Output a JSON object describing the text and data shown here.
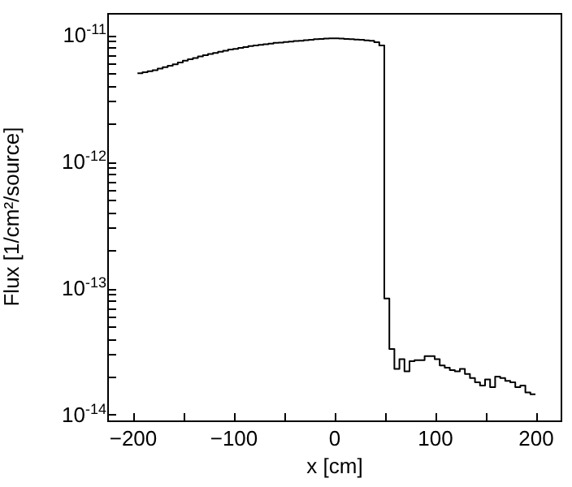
{
  "chart_data": {
    "type": "histogram",
    "xlabel": "x [cm]",
    "ylabel": "Flux [1/cm²/source]",
    "bins": [
      -195,
      -190,
      -185,
      -180,
      -175,
      -170,
      -165,
      -160,
      -155,
      -150,
      -145,
      -140,
      -135,
      -130,
      -125,
      -120,
      -115,
      -110,
      -105,
      -100,
      -95,
      -90,
      -85,
      -80,
      -75,
      -70,
      -65,
      -60,
      -55,
      -50,
      -45,
      -40,
      -35,
      -30,
      -25,
      -20,
      -15,
      -10,
      -5,
      0,
      5,
      10,
      15,
      20,
      25,
      30,
      35,
      40,
      45,
      50,
      55,
      60,
      65,
      70,
      75,
      80,
      85,
      90,
      95,
      100,
      105,
      110,
      115,
      120,
      125,
      130,
      135,
      140,
      145,
      150,
      155,
      160,
      165,
      170,
      175,
      180,
      185,
      190,
      195,
      200
    ],
    "values": [
      5e-12,
      5.1e-12,
      5.2e-12,
      5.3e-12,
      5.45e-12,
      5.6e-12,
      5.75e-12,
      5.9e-12,
      6.1e-12,
      6.3e-12,
      6.45e-12,
      6.6e-12,
      6.8e-12,
      6.95e-12,
      7.1e-12,
      7.25e-12,
      7.4e-12,
      7.55e-12,
      7.7e-12,
      7.8e-12,
      7.95e-12,
      8.05e-12,
      8.2e-12,
      8.3e-12,
      8.4e-12,
      8.5e-12,
      8.6e-12,
      8.7e-12,
      8.75e-12,
      8.85e-12,
      8.9e-12,
      9e-12,
      9.05e-12,
      9.15e-12,
      9.2e-12,
      9.3e-12,
      9.35e-12,
      9.4e-12,
      9.45e-12,
      9.45e-12,
      9.4e-12,
      9.35e-12,
      9.3e-12,
      9.25e-12,
      9.2e-12,
      9.1e-12,
      9.05e-12,
      8.8e-12,
      8.3e-12,
      8.3e-14,
      3.3e-14,
      2.3e-14,
      2.75e-14,
      2.2e-14,
      2.65e-14,
      2.7e-14,
      2.7e-14,
      2.9e-14,
      2.9e-14,
      2.75e-14,
      2.45e-14,
      2.35e-14,
      2.25e-14,
      2.2e-14,
      2.3e-14,
      2.1e-14,
      1.95e-14,
      1.8e-14,
      1.7e-14,
      1.9e-14,
      1.65e-14,
      2e-14,
      1.95e-14,
      1.85e-14,
      1.8e-14,
      1.65e-14,
      1.7e-14,
      1.5e-14,
      1.45e-14
    ],
    "color": "#000000",
    "log": "y",
    "xlim": [
      -225,
      225
    ],
    "ylim": [
      9e-15,
      1.5e-11
    ],
    "xticks": [
      -200,
      {
        "value": -150,
        "label": null
      },
      -100,
      {
        "value": -50,
        "label": null
      },
      0,
      {
        "value": 50,
        "label": null
      },
      100,
      {
        "value": 150,
        "label": null
      },
      200
    ],
    "yticks": [
      {
        "value": 1e-14,
        "label": "10$^{-14}$"
      },
      {
        "value": 2e-14,
        "label": null
      },
      {
        "value": 3e-14,
        "label": null
      },
      {
        "value": 4e-14,
        "label": null
      },
      {
        "value": 5e-14,
        "label": null
      },
      {
        "value": 6e-14,
        "label": null
      },
      {
        "value": 7e-14,
        "label": null
      },
      {
        "value": 8e-14,
        "label": null
      },
      {
        "value": 9e-14,
        "label": null
      },
      {
        "value": 1e-13,
        "label": "10$^{-13}$"
      },
      {
        "value": 2e-13,
        "label": null
      },
      {
        "value": 3e-13,
        "label": null
      },
      {
        "value": 4e-13,
        "label": null
      },
      {
        "value": 5e-13,
        "label": null
      },
      {
        "value": 6e-13,
        "label": null
      },
      {
        "value": 7e-13,
        "label": null
      },
      {
        "value": 8e-13,
        "label": null
      },
      {
        "value": 9e-13,
        "label": null
      },
      {
        "value": 1e-12,
        "label": "10$^{-12}$"
      },
      {
        "value": 2e-12,
        "label": null
      },
      {
        "value": 3e-12,
        "label": null
      },
      {
        "value": 4e-12,
        "label": null
      },
      {
        "value": 5e-12,
        "label": null
      },
      {
        "value": 6e-12,
        "label": null
      },
      {
        "value": 7e-12,
        "label": null
      },
      {
        "value": 8e-12,
        "label": null
      },
      {
        "value": 9e-12,
        "label": null
      },
      {
        "value": 1e-11,
        "label": "10$^{-11}$"
      }
    ],
    "grid": false
  }
}
